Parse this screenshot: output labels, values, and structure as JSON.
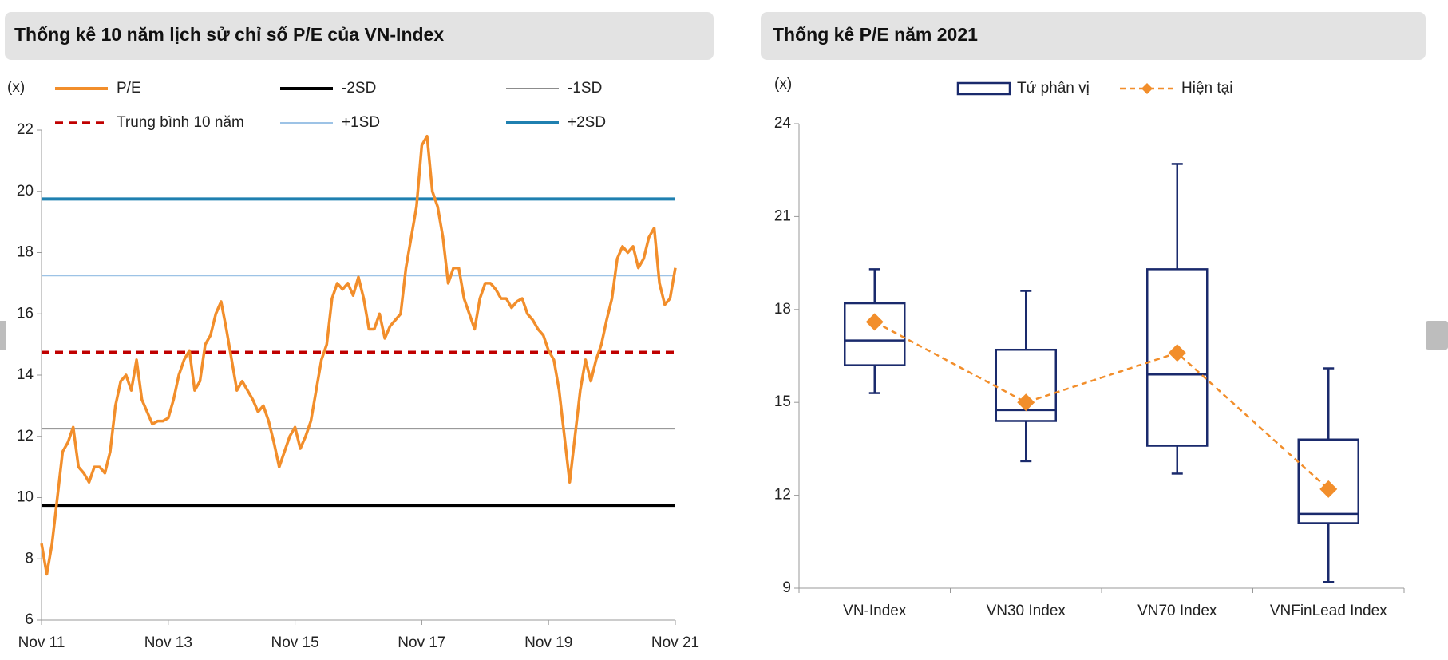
{
  "chart_data": [
    {
      "type": "line",
      "title": "Thống kê 10 năm lịch sử chỉ số P/E của VN-Index",
      "y_label": "(x)",
      "x": [
        "2011-11",
        "2011-12",
        "2012-01",
        "2012-02",
        "2012-03",
        "2012-04",
        "2012-05",
        "2012-06",
        "2012-07",
        "2012-08",
        "2012-09",
        "2012-10",
        "2012-11",
        "2012-12",
        "2013-01",
        "2013-02",
        "2013-03",
        "2013-04",
        "2013-05",
        "2013-06",
        "2013-07",
        "2013-08",
        "2013-09",
        "2013-10",
        "2013-11",
        "2013-12",
        "2014-01",
        "2014-02",
        "2014-03",
        "2014-04",
        "2014-05",
        "2014-06",
        "2014-07",
        "2014-08",
        "2014-09",
        "2014-10",
        "2014-11",
        "2014-12",
        "2015-01",
        "2015-02",
        "2015-03",
        "2015-04",
        "2015-05",
        "2015-06",
        "2015-07",
        "2015-08",
        "2015-09",
        "2015-10",
        "2015-11",
        "2015-12",
        "2016-01",
        "2016-02",
        "2016-03",
        "2016-04",
        "2016-05",
        "2016-06",
        "2016-07",
        "2016-08",
        "2016-09",
        "2016-10",
        "2016-11",
        "2016-12",
        "2017-01",
        "2017-02",
        "2017-03",
        "2017-04",
        "2017-05",
        "2017-06",
        "2017-07",
        "2017-08",
        "2017-09",
        "2017-10",
        "2017-11",
        "2017-12",
        "2018-01",
        "2018-02",
        "2018-03",
        "2018-04",
        "2018-05",
        "2018-06",
        "2018-07",
        "2018-08",
        "2018-09",
        "2018-10",
        "2018-11",
        "2018-12",
        "2019-01",
        "2019-02",
        "2019-03",
        "2019-04",
        "2019-05",
        "2019-06",
        "2019-07",
        "2019-08",
        "2019-09",
        "2019-10",
        "2019-11",
        "2019-12",
        "2020-01",
        "2020-02",
        "2020-03",
        "2020-04",
        "2020-05",
        "2020-06",
        "2020-07",
        "2020-08",
        "2020-09",
        "2020-10",
        "2020-11",
        "2020-12",
        "2021-01",
        "2021-02",
        "2021-03",
        "2021-04",
        "2021-05",
        "2021-06",
        "2021-07",
        "2021-08",
        "2021-09",
        "2021-10",
        "2021-11"
      ],
      "series": [
        {
          "name": "P/E",
          "color": "#f28e2b",
          "values": [
            8.5,
            7.5,
            8.5,
            10,
            11.5,
            11.8,
            12.3,
            11,
            10.8,
            10.5,
            11,
            11,
            10.8,
            11.5,
            13,
            13.8,
            14,
            13.5,
            14.5,
            13.2,
            12.8,
            12.4,
            12.5,
            12.5,
            12.6,
            13.2,
            14,
            14.5,
            14.8,
            13.5,
            13.8,
            15,
            15.3,
            16,
            16.4,
            15.5,
            14.5,
            13.5,
            13.8,
            13.5,
            13.2,
            12.8,
            13,
            12.5,
            11.8,
            11,
            11.5,
            12,
            12.3,
            11.6,
            12,
            12.5,
            13.5,
            14.5,
            15,
            16.5,
            17,
            16.8,
            17,
            16.6,
            17.2,
            16.5,
            15.5,
            15.5,
            16,
            15.2,
            15.6,
            15.8,
            16,
            17.5,
            18.5,
            19.5,
            21.5,
            21.8,
            20,
            19.5,
            18.5,
            17,
            17.5,
            17.5,
            16.5,
            16,
            15.5,
            16.5,
            17,
            17,
            16.8,
            16.5,
            16.5,
            16.2,
            16.4,
            16.5,
            16,
            15.8,
            15.5,
            15.3,
            14.8,
            14.5,
            13.5,
            12,
            10.5,
            12,
            13.5,
            14.5,
            13.8,
            14.5,
            15,
            15.8,
            16.5,
            17.8,
            18.2,
            18,
            18.2,
            17.5,
            17.8,
            18.5,
            18.8,
            17,
            16.3,
            16.5,
            17.5
          ]
        }
      ],
      "reference_lines": [
        {
          "name": "-2SD",
          "color": "#000000",
          "value": 9.75,
          "width": 4,
          "dashed": false
        },
        {
          "name": "-1SD",
          "color": "#8c8c8c",
          "value": 12.25,
          "width": 2,
          "dashed": false
        },
        {
          "name": "Trung bình 10 năm",
          "color": "#c00000",
          "value": 14.75,
          "width": 3.5,
          "dashed": true
        },
        {
          "name": "+1SD",
          "color": "#9dc3e6",
          "value": 17.25,
          "width": 2,
          "dashed": false
        },
        {
          "name": "+2SD",
          "color": "#1f80b0",
          "value": 19.75,
          "width": 4,
          "dashed": false
        }
      ],
      "ylim": [
        6,
        22
      ],
      "yticks": [
        6,
        8,
        10,
        12,
        14,
        16,
        18,
        20,
        22
      ],
      "xticks": [
        {
          "value": "2011-11",
          "label": "Nov 11"
        },
        {
          "value": "2013-11",
          "label": "Nov 13"
        },
        {
          "value": "2015-11",
          "label": "Nov 15"
        },
        {
          "value": "2017-11",
          "label": "Nov 17"
        },
        {
          "value": "2019-11",
          "label": "Nov 19"
        },
        {
          "value": "2021-11",
          "label": "Nov 21"
        }
      ]
    },
    {
      "type": "box",
      "title": "Thống kê P/E năm 2021",
      "y_label": "(x)",
      "categories": [
        "VN-Index",
        "VN30 Index",
        "VN70 Index",
        "VNFinLead Index"
      ],
      "boxes": {
        "name": "Tứ phân vị",
        "color": "#1a2a6c",
        "min": [
          15.3,
          13.1,
          12.7,
          9.2
        ],
        "q1": [
          16.2,
          14.4,
          13.6,
          11.1
        ],
        "median": [
          17,
          14.75,
          15.9,
          11.4
        ],
        "q3": [
          18.2,
          16.7,
          19.3,
          13.8
        ],
        "max": [
          19.3,
          18.6,
          22.7,
          16.1
        ]
      },
      "series": [
        {
          "name": "Hiện tại",
          "color": "#f28e2b",
          "values": [
            17.6,
            15.0,
            16.6,
            12.2
          ]
        }
      ],
      "ylim": [
        9,
        24
      ],
      "yticks": [
        9,
        12,
        15,
        18,
        21,
        24
      ]
    }
  ]
}
